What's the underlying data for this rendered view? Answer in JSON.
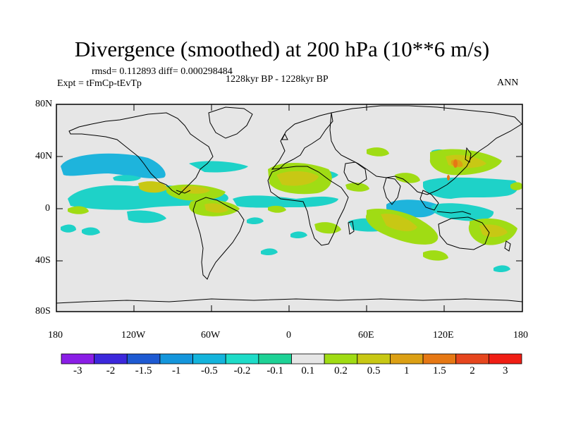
{
  "title": "Divergence (smoothed) at 200 hPa (10**6 m/s)",
  "stats": "rmsd= 0.112893 diff= 0.000298484",
  "expt": "Expt = tFmCp-tEvTp",
  "period": "1228kyr BP - 1228kyr BP",
  "season": "ANN",
  "lat_ticks": [
    "80N",
    "40N",
    "0",
    "40S",
    "80S"
  ],
  "lon_ticks": [
    "180",
    "120W",
    "60W",
    "0",
    "60E",
    "120E",
    "180"
  ],
  "colorbar": {
    "labels": [
      "-3",
      "-2",
      "-1.5",
      "-1",
      "-0.5",
      "-0.2",
      "-0.1",
      "0.1",
      "0.2",
      "0.5",
      "1",
      "1.5",
      "2",
      "3"
    ],
    "colors": [
      "#8a1ee6",
      "#3c28dc",
      "#1e5ad2",
      "#1496dc",
      "#14b4dc",
      "#1edcc8",
      "#1ed296",
      "#e6e6e6",
      "#a0dc14",
      "#c8c814",
      "#dca014",
      "#e67814",
      "#e6461e",
      "#f01e14"
    ]
  },
  "anomaly_regions": [
    {
      "lat": 38,
      "lon": -165,
      "value": -0.3
    },
    {
      "lat": 36,
      "lon": -150,
      "value": -0.3
    },
    {
      "lat": 12,
      "lon": -150,
      "value": -0.3
    },
    {
      "lat": 5,
      "lon": -110,
      "value": -0.3
    },
    {
      "lat": 10,
      "lon": -80,
      "value": 0.3
    },
    {
      "lat": 3,
      "lon": -60,
      "value": -0.3
    },
    {
      "lat": 5,
      "lon": -45,
      "value": 0.3
    },
    {
      "lat": 22,
      "lon": -5,
      "value": 0.3
    },
    {
      "lat": 5,
      "lon": 20,
      "value": -0.3
    },
    {
      "lat": 30,
      "lon": 140,
      "value": 0.3
    },
    {
      "lat": 15,
      "lon": 140,
      "value": -0.3
    },
    {
      "lat": -12,
      "lon": 90,
      "value": -0.3
    },
    {
      "lat": -15,
      "lon": 75,
      "value": 0.3
    },
    {
      "lat": -30,
      "lon": 155,
      "value": 0.3
    }
  ]
}
